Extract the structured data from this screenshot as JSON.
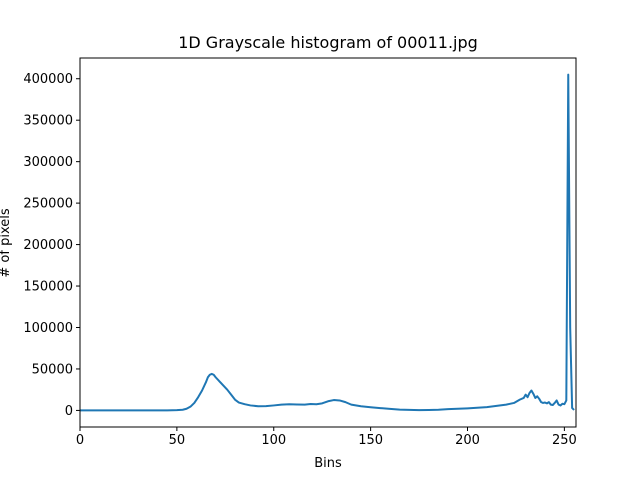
{
  "chart_data": {
    "type": "line",
    "title": "1D Grayscale histogram of 00011.jpg",
    "xlabel": "Bins",
    "ylabel": "# of pixels",
    "xlim": [
      0,
      256
    ],
    "ylim": [
      -20000,
      425000
    ],
    "x_ticks": [
      0,
      50,
      100,
      150,
      200,
      250
    ],
    "y_ticks": [
      0,
      50000,
      100000,
      150000,
      200000,
      250000,
      300000,
      350000,
      400000
    ],
    "grid": false,
    "series": [
      {
        "color": "#1f77b4",
        "points": [
          [
            0,
            0
          ],
          [
            10,
            0
          ],
          [
            20,
            0
          ],
          [
            30,
            0
          ],
          [
            40,
            0
          ],
          [
            45,
            100
          ],
          [
            50,
            300
          ],
          [
            53,
            800
          ],
          [
            55,
            2000
          ],
          [
            57,
            4500
          ],
          [
            59,
            9000
          ],
          [
            61,
            16000
          ],
          [
            63,
            24000
          ],
          [
            65,
            34000
          ],
          [
            66,
            40000
          ],
          [
            67,
            43000
          ],
          [
            68,
            44000
          ],
          [
            69,
            43000
          ],
          [
            70,
            40000
          ],
          [
            72,
            35000
          ],
          [
            74,
            30000
          ],
          [
            76,
            25000
          ],
          [
            78,
            19000
          ],
          [
            80,
            13000
          ],
          [
            82,
            9500
          ],
          [
            85,
            7500
          ],
          [
            88,
            6000
          ],
          [
            92,
            5000
          ],
          [
            96,
            5200
          ],
          [
            100,
            6000
          ],
          [
            104,
            7000
          ],
          [
            108,
            7500
          ],
          [
            112,
            7200
          ],
          [
            116,
            7000
          ],
          [
            119,
            7800
          ],
          [
            122,
            7500
          ],
          [
            125,
            8500
          ],
          [
            128,
            11000
          ],
          [
            131,
            12500
          ],
          [
            134,
            12000
          ],
          [
            137,
            10000
          ],
          [
            140,
            7000
          ],
          [
            145,
            5000
          ],
          [
            150,
            3800
          ],
          [
            155,
            2800
          ],
          [
            160,
            1800
          ],
          [
            165,
            1000
          ],
          [
            170,
            600
          ],
          [
            175,
            400
          ],
          [
            180,
            500
          ],
          [
            185,
            800
          ],
          [
            190,
            1500
          ],
          [
            195,
            2000
          ],
          [
            200,
            2500
          ],
          [
            205,
            3200
          ],
          [
            210,
            4000
          ],
          [
            215,
            5500
          ],
          [
            220,
            7000
          ],
          [
            224,
            9000
          ],
          [
            227,
            13000
          ],
          [
            229,
            15000
          ],
          [
            230,
            19000
          ],
          [
            231,
            16000
          ],
          [
            232,
            21000
          ],
          [
            233,
            24000
          ],
          [
            234,
            20000
          ],
          [
            235,
            15000
          ],
          [
            236,
            17000
          ],
          [
            237,
            14000
          ],
          [
            238,
            10000
          ],
          [
            239,
            9000
          ],
          [
            240,
            9500
          ],
          [
            241,
            8500
          ],
          [
            242,
            10000
          ],
          [
            243,
            7000
          ],
          [
            244,
            6500
          ],
          [
            245,
            9000
          ],
          [
            246,
            12000
          ],
          [
            247,
            7000
          ],
          [
            248,
            6000
          ],
          [
            249,
            8000
          ],
          [
            250,
            7500
          ],
          [
            251,
            12000
          ],
          [
            252,
            405000
          ],
          [
            253,
            100000
          ],
          [
            254,
            3000
          ],
          [
            255,
            500
          ]
        ]
      }
    ]
  }
}
